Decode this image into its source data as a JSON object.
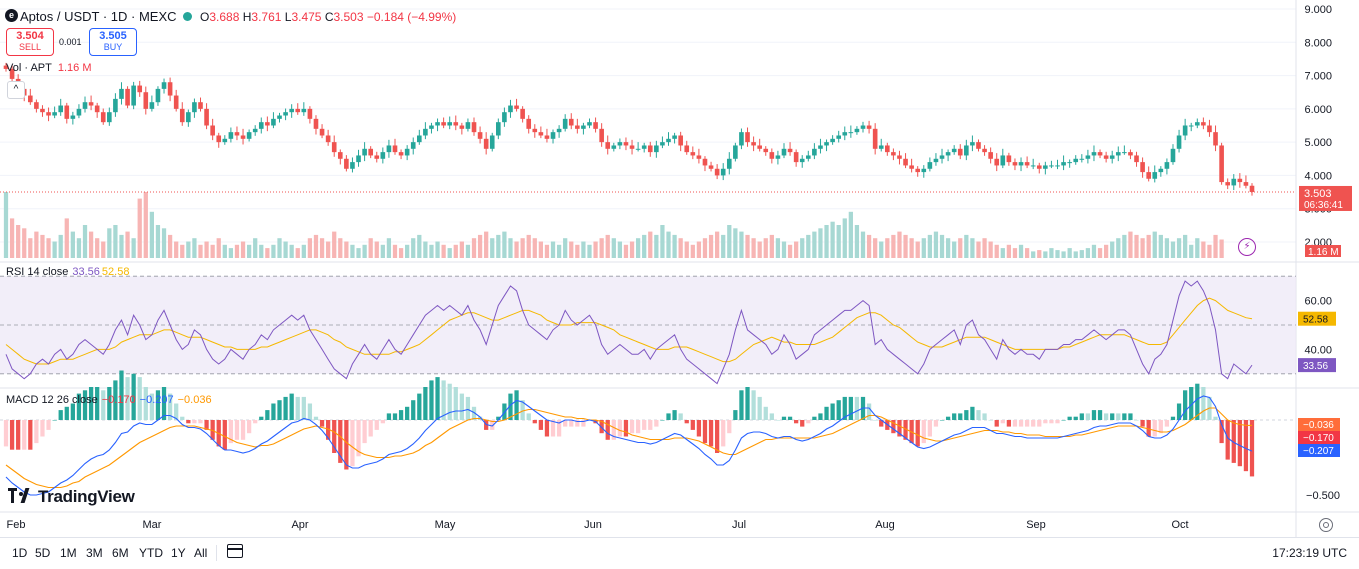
{
  "header": {
    "symbol": "Aptos / USDT · 1D · MEXC",
    "open_label": "O",
    "open": "3.688",
    "high_label": "H",
    "high": "3.761",
    "low_label": "L",
    "low": "3.475",
    "close_label": "C",
    "close": "3.503",
    "change": "−0.184 (−4.99%)",
    "sell_price": "3.504",
    "sell_label": "SELL",
    "buy_price": "3.505",
    "buy_label": "BUY",
    "spread": "0.001"
  },
  "colors": {
    "up": "#26a69a",
    "down": "#ef5350",
    "rsi": "#7e57c2",
    "rsi_ma": "#f5b800",
    "macd": "#2962ff",
    "signal": "#ff9800",
    "rsi_band": "#ede7f6"
  },
  "icons": [
    "aptos-logo-icon",
    "market-status-dot-icon",
    "collapse-chevron-icon",
    "calendar-range-icon",
    "settings-gear-icon",
    "lightning-icon",
    "tradingview-logo-icon"
  ],
  "volume": {
    "label": "Vol · APT",
    "value": "1.16 M",
    "last_label": "1.16 M"
  },
  "rsi": {
    "label": "RSI 14 close",
    "value": "33.56",
    "ma": "52.58",
    "levels": [
      70,
      50,
      30
    ]
  },
  "macd": {
    "label": "MACD 12 26 close",
    "hist": "−0.170",
    "macd": "−0.207",
    "signal": "−0.036"
  },
  "price_axis": {
    "ticks": [
      "9.000",
      "8.000",
      "7.000",
      "6.000",
      "5.000",
      "4.000",
      "3.000",
      "2.000"
    ],
    "last": "3.503",
    "countdown": "06:36:41"
  },
  "rsi_axis": {
    "ticks": [
      "60.00",
      "40.00"
    ],
    "tags": [
      "52.58",
      "33.56"
    ]
  },
  "macd_axis": {
    "ticks": [
      "−0.500"
    ],
    "tags": [
      "−0.036",
      "−0.170",
      "−0.207"
    ]
  },
  "time_axis": {
    "labels": [
      "Feb",
      "Mar",
      "Apr",
      "May",
      "Jun",
      "Jul",
      "Aug",
      "Sep",
      "Oct"
    ]
  },
  "brand": "TradingView",
  "ranges": [
    "1D",
    "5D",
    "1M",
    "3M",
    "6M",
    "YTD",
    "1Y",
    "All"
  ],
  "clock": "17:23:19 UTC",
  "chart_data": {
    "type": "candlestick",
    "interval": "1D",
    "price_range": [
      2.0,
      9.0
    ],
    "rsi_range": [
      25,
      75
    ],
    "macd_range": [
      -0.6,
      0.2
    ],
    "closes": [
      7.2,
      6.9,
      6.6,
      6.4,
      6.2,
      6.0,
      5.9,
      5.8,
      5.9,
      6.1,
      5.7,
      5.8,
      6.0,
      6.2,
      6.1,
      5.9,
      5.6,
      5.9,
      6.3,
      6.6,
      6.1,
      6.7,
      6.5,
      6.0,
      6.2,
      6.6,
      6.8,
      6.4,
      6.0,
      5.6,
      5.9,
      6.2,
      6.0,
      5.5,
      5.2,
      5.0,
      5.1,
      5.3,
      5.2,
      5.1,
      5.3,
      5.4,
      5.6,
      5.5,
      5.7,
      5.8,
      5.9,
      6.0,
      5.9,
      6.0,
      5.7,
      5.4,
      5.2,
      5.0,
      4.7,
      4.5,
      4.2,
      4.4,
      4.6,
      4.8,
      4.6,
      4.5,
      4.7,
      4.9,
      4.7,
      4.6,
      4.8,
      5.0,
      5.2,
      5.4,
      5.5,
      5.6,
      5.5,
      5.6,
      5.5,
      5.4,
      5.6,
      5.3,
      5.1,
      4.8,
      5.2,
      5.6,
      5.9,
      6.1,
      6.0,
      5.7,
      5.4,
      5.3,
      5.2,
      5.1,
      5.3,
      5.4,
      5.7,
      5.5,
      5.4,
      5.5,
      5.6,
      5.4,
      5.0,
      4.8,
      4.9,
      5.0,
      4.9,
      4.8,
      4.8,
      4.9,
      4.7,
      4.9,
      5.0,
      5.1,
      5.2,
      4.9,
      4.7,
      4.6,
      4.5,
      4.3,
      4.2,
      4.0,
      4.2,
      4.5,
      4.9,
      5.3,
      5.0,
      4.9,
      4.8,
      4.7,
      4.5,
      4.6,
      4.8,
      4.7,
      4.4,
      4.5,
      4.6,
      4.8,
      4.9,
      5.0,
      5.1,
      5.2,
      5.3,
      5.3,
      5.4,
      5.5,
      5.4,
      4.8,
      4.9,
      4.7,
      4.6,
      4.5,
      4.3,
      4.2,
      4.1,
      4.2,
      4.4,
      4.5,
      4.6,
      4.7,
      4.8,
      4.6,
      4.9,
      5.0,
      4.8,
      4.7,
      4.5,
      4.3,
      4.6,
      4.4,
      4.3,
      4.4,
      4.3,
      4.3,
      4.2,
      4.3,
      4.3,
      4.3,
      4.4,
      4.4,
      4.5,
      4.5,
      4.6,
      4.7,
      4.6,
      4.5,
      4.6,
      4.7,
      4.7,
      4.6,
      4.4,
      4.1,
      3.9,
      4.1,
      4.2,
      4.4,
      4.8,
      5.2,
      5.5,
      5.5,
      5.6,
      5.5,
      5.3,
      4.9,
      3.8,
      3.7,
      3.9,
      3.8,
      3.69,
      3.503
    ],
    "volumes": [
      1.0,
      0.6,
      0.5,
      0.45,
      0.3,
      0.4,
      0.35,
      0.3,
      0.25,
      0.35,
      0.6,
      0.4,
      0.3,
      0.5,
      0.4,
      0.3,
      0.25,
      0.45,
      0.5,
      0.35,
      0.4,
      0.3,
      0.9,
      1.0,
      0.7,
      0.5,
      0.45,
      0.35,
      0.25,
      0.2,
      0.25,
      0.3,
      0.2,
      0.25,
      0.2,
      0.3,
      0.2,
      0.15,
      0.2,
      0.25,
      0.2,
      0.3,
      0.2,
      0.15,
      0.2,
      0.3,
      0.25,
      0.2,
      0.15,
      0.2,
      0.3,
      0.35,
      0.3,
      0.25,
      0.4,
      0.3,
      0.25,
      0.2,
      0.15,
      0.2,
      0.3,
      0.25,
      0.2,
      0.3,
      0.2,
      0.15,
      0.2,
      0.3,
      0.35,
      0.25,
      0.2,
      0.25,
      0.2,
      0.15,
      0.2,
      0.25,
      0.2,
      0.3,
      0.35,
      0.4,
      0.3,
      0.35,
      0.4,
      0.3,
      0.25,
      0.3,
      0.35,
      0.3,
      0.25,
      0.2,
      0.25,
      0.2,
      0.3,
      0.25,
      0.2,
      0.25,
      0.2,
      0.25,
      0.3,
      0.35,
      0.3,
      0.25,
      0.2,
      0.25,
      0.3,
      0.35,
      0.4,
      0.35,
      0.5,
      0.4,
      0.35,
      0.3,
      0.25,
      0.2,
      0.25,
      0.3,
      0.35,
      0.4,
      0.35,
      0.5,
      0.45,
      0.4,
      0.35,
      0.3,
      0.25,
      0.3,
      0.35,
      0.3,
      0.25,
      0.2,
      0.25,
      0.3,
      0.35,
      0.4,
      0.45,
      0.5,
      0.55,
      0.5,
      0.6,
      0.7,
      0.5,
      0.4,
      0.35,
      0.3,
      0.25,
      0.3,
      0.35,
      0.4,
      0.35,
      0.3,
      0.25,
      0.3,
      0.35,
      0.4,
      0.35,
      0.3,
      0.25,
      0.3,
      0.35,
      0.3,
      0.25,
      0.3,
      0.25,
      0.2,
      0.15,
      0.2,
      0.15,
      0.2,
      0.15,
      0.1,
      0.12,
      0.1,
      0.15,
      0.12,
      0.1,
      0.15,
      0.1,
      0.12,
      0.15,
      0.2,
      0.15,
      0.2,
      0.25,
      0.3,
      0.35,
      0.4,
      0.35,
      0.3,
      0.35,
      0.4,
      0.35,
      0.3,
      0.25,
      0.3,
      0.35,
      0.2,
      0.3,
      0.25,
      0.2,
      0.35,
      0.28
    ],
    "rsi_values": [
      38,
      32,
      30,
      28,
      30,
      34,
      36,
      34,
      38,
      40,
      36,
      38,
      42,
      44,
      42,
      40,
      38,
      42,
      48,
      52,
      46,
      54,
      50,
      44,
      46,
      52,
      56,
      50,
      44,
      40,
      42,
      48,
      46,
      40,
      36,
      34,
      36,
      40,
      38,
      36,
      40,
      42,
      46,
      44,
      48,
      50,
      52,
      54,
      52,
      54,
      48,
      44,
      40,
      36,
      32,
      30,
      28,
      34,
      38,
      42,
      38,
      36,
      40,
      44,
      40,
      38,
      42,
      46,
      50,
      54,
      56,
      58,
      56,
      58,
      56,
      54,
      58,
      52,
      48,
      42,
      50,
      58,
      62,
      66,
      64,
      56,
      50,
      48,
      46,
      44,
      48,
      50,
      56,
      52,
      50,
      52,
      54,
      50,
      42,
      38,
      40,
      42,
      40,
      38,
      38,
      40,
      36,
      40,
      42,
      44,
      46,
      40,
      36,
      34,
      32,
      30,
      28,
      26,
      32,
      38,
      48,
      56,
      48,
      46,
      44,
      42,
      38,
      40,
      46,
      42,
      36,
      38,
      40,
      46,
      48,
      50,
      52,
      54,
      56,
      56,
      58,
      60,
      58,
      42,
      44,
      40,
      38,
      36,
      34,
      32,
      30,
      34,
      40,
      42,
      44,
      46,
      48,
      42,
      50,
      52,
      46,
      44,
      40,
      36,
      44,
      40,
      38,
      40,
      38,
      38,
      36,
      40,
      40,
      40,
      42,
      42,
      44,
      44,
      46,
      48,
      46,
      44,
      46,
      48,
      48,
      46,
      40,
      34,
      30,
      36,
      38,
      42,
      52,
      62,
      68,
      66,
      68,
      64,
      58,
      48,
      30,
      28,
      34,
      32,
      30,
      33.56
    ],
    "rsi_ma_values": [
      42,
      40,
      38,
      36,
      35,
      34,
      34,
      34,
      35,
      36,
      36,
      36,
      37,
      38,
      39,
      40,
      40,
      40,
      41,
      43,
      44,
      45,
      46,
      46,
      46,
      47,
      48,
      48,
      47,
      46,
      45,
      45,
      45,
      44,
      43,
      42,
      41,
      41,
      40,
      40,
      40,
      40,
      41,
      41,
      42,
      43,
      44,
      45,
      46,
      47,
      48,
      48,
      47,
      46,
      44,
      43,
      41,
      40,
      39,
      38,
      38,
      38,
      38,
      38,
      39,
      39,
      40,
      41,
      42,
      44,
      46,
      48,
      50,
      52,
      53,
      54,
      55,
      55,
      54,
      53,
      52,
      52,
      53,
      54,
      55,
      56,
      56,
      55,
      54,
      52,
      51,
      50,
      50,
      50,
      51,
      51,
      51,
      51,
      50,
      49,
      48,
      46,
      45,
      44,
      43,
      42,
      41,
      40,
      40,
      40,
      41,
      41,
      41,
      40,
      39,
      38,
      37,
      36,
      35,
      35,
      36,
      38,
      40,
      42,
      43,
      44,
      45,
      44,
      43,
      43,
      42,
      42,
      42,
      42,
      43,
      44,
      45,
      47,
      49,
      51,
      53,
      54,
      55,
      55,
      54,
      52,
      50,
      49,
      47,
      45,
      43,
      42,
      41,
      41,
      41,
      42,
      43,
      44,
      45,
      45,
      45,
      45,
      44,
      43,
      42,
      41,
      40,
      40,
      40,
      40,
      40,
      40,
      40,
      40,
      41,
      41,
      42,
      43,
      44,
      45,
      46,
      46,
      46,
      46,
      46,
      45,
      44,
      43,
      42,
      42,
      42,
      43,
      46,
      49,
      52,
      55,
      58,
      60,
      61,
      60,
      58,
      56,
      55,
      54,
      53,
      52.58
    ],
    "macd_values": [
      -0.38,
      -0.42,
      -0.45,
      -0.48,
      -0.5,
      -0.5,
      -0.49,
      -0.48,
      -0.45,
      -0.42,
      -0.4,
      -0.37,
      -0.33,
      -0.29,
      -0.26,
      -0.24,
      -0.23,
      -0.2,
      -0.15,
      -0.09,
      -0.08,
      -0.04,
      -0.02,
      -0.03,
      -0.03,
      0.0,
      0.03,
      0.03,
      0.01,
      -0.03,
      -0.05,
      -0.05,
      -0.06,
      -0.09,
      -0.13,
      -0.17,
      -0.2,
      -0.2,
      -0.21,
      -0.22,
      -0.21,
      -0.19,
      -0.16,
      -0.14,
      -0.11,
      -0.08,
      -0.05,
      -0.02,
      -0.01,
      0.01,
      0.0,
      -0.03,
      -0.07,
      -0.12,
      -0.18,
      -0.24,
      -0.3,
      -0.32,
      -0.32,
      -0.3,
      -0.29,
      -0.28,
      -0.26,
      -0.23,
      -0.22,
      -0.21,
      -0.19,
      -0.16,
      -0.12,
      -0.07,
      -0.03,
      0.01,
      0.03,
      0.05,
      0.06,
      0.06,
      0.07,
      0.05,
      0.02,
      -0.03,
      -0.04,
      0.0,
      0.05,
      0.1,
      0.13,
      0.12,
      0.09,
      0.06,
      0.03,
      0.0,
      -0.01,
      -0.02,
      0.0,
      0.0,
      -0.01,
      -0.01,
      0.0,
      -0.01,
      -0.05,
      -0.09,
      -0.11,
      -0.12,
      -0.13,
      -0.14,
      -0.15,
      -0.15,
      -0.16,
      -0.15,
      -0.13,
      -0.11,
      -0.09,
      -0.1,
      -0.13,
      -0.16,
      -0.19,
      -0.23,
      -0.26,
      -0.3,
      -0.3,
      -0.27,
      -0.2,
      -0.12,
      -0.09,
      -0.08,
      -0.08,
      -0.09,
      -0.11,
      -0.12,
      -0.11,
      -0.11,
      -0.13,
      -0.14,
      -0.13,
      -0.11,
      -0.09,
      -0.06,
      -0.04,
      -0.01,
      0.02,
      0.04,
      0.06,
      0.08,
      0.08,
      0.03,
      0.0,
      -0.03,
      -0.06,
      -0.09,
      -0.12,
      -0.15,
      -0.18,
      -0.19,
      -0.18,
      -0.16,
      -0.14,
      -0.12,
      -0.1,
      -0.09,
      -0.07,
      -0.05,
      -0.05,
      -0.05,
      -0.07,
      -0.09,
      -0.09,
      -0.1,
      -0.11,
      -0.11,
      -0.12,
      -0.12,
      -0.12,
      -0.12,
      -0.12,
      -0.12,
      -0.11,
      -0.1,
      -0.09,
      -0.08,
      -0.07,
      -0.05,
      -0.04,
      -0.04,
      -0.03,
      -0.02,
      -0.02,
      -0.02,
      -0.04,
      -0.07,
      -0.11,
      -0.12,
      -0.12,
      -0.1,
      -0.06,
      0.0,
      0.06,
      0.1,
      0.14,
      0.16,
      0.15,
      0.09,
      -0.03,
      -0.12,
      -0.15,
      -0.17,
      -0.19,
      -0.207
    ],
    "signal_values": [
      -0.3,
      -0.33,
      -0.36,
      -0.39,
      -0.41,
      -0.43,
      -0.44,
      -0.45,
      -0.45,
      -0.45,
      -0.44,
      -0.42,
      -0.41,
      -0.38,
      -0.36,
      -0.34,
      -0.32,
      -0.3,
      -0.27,
      -0.24,
      -0.21,
      -0.18,
      -0.15,
      -0.13,
      -0.11,
      -0.09,
      -0.07,
      -0.05,
      -0.04,
      -0.04,
      -0.04,
      -0.04,
      -0.05,
      -0.06,
      -0.07,
      -0.09,
      -0.11,
      -0.13,
      -0.15,
      -0.16,
      -0.17,
      -0.18,
      -0.17,
      -0.17,
      -0.16,
      -0.14,
      -0.12,
      -0.1,
      -0.08,
      -0.06,
      -0.05,
      -0.04,
      -0.05,
      -0.06,
      -0.08,
      -0.11,
      -0.15,
      -0.18,
      -0.21,
      -0.23,
      -0.24,
      -0.25,
      -0.25,
      -0.25,
      -0.24,
      -0.24,
      -0.23,
      -0.22,
      -0.2,
      -0.17,
      -0.15,
      -0.12,
      -0.09,
      -0.06,
      -0.04,
      -0.02,
      0.0,
      0.01,
      0.01,
      0.0,
      -0.01,
      -0.01,
      0.0,
      0.02,
      0.04,
      0.06,
      0.07,
      0.07,
      0.06,
      0.05,
      0.04,
      0.03,
      0.02,
      0.02,
      0.01,
      0.01,
      0.0,
      0.0,
      -0.01,
      -0.03,
      -0.05,
      -0.07,
      -0.08,
      -0.1,
      -0.11,
      -0.12,
      -0.13,
      -0.13,
      -0.13,
      -0.13,
      -0.12,
      -0.12,
      -0.12,
      -0.13,
      -0.14,
      -0.16,
      -0.18,
      -0.2,
      -0.22,
      -0.23,
      -0.23,
      -0.21,
      -0.19,
      -0.17,
      -0.15,
      -0.13,
      -0.13,
      -0.12,
      -0.12,
      -0.12,
      -0.12,
      -0.12,
      -0.12,
      -0.12,
      -0.11,
      -0.1,
      -0.09,
      -0.07,
      -0.05,
      -0.03,
      -0.01,
      0.01,
      0.03,
      0.03,
      0.02,
      0.0,
      -0.02,
      -0.04,
      -0.06,
      -0.08,
      -0.1,
      -0.12,
      -0.13,
      -0.14,
      -0.14,
      -0.13,
      -0.12,
      -0.11,
      -0.1,
      -0.09,
      -0.08,
      -0.07,
      -0.07,
      -0.07,
      -0.08,
      -0.08,
      -0.09,
      -0.09,
      -0.1,
      -0.1,
      -0.1,
      -0.11,
      -0.11,
      -0.11,
      -0.11,
      -0.11,
      -0.1,
      -0.1,
      -0.09,
      -0.08,
      -0.07,
      -0.06,
      -0.05,
      -0.04,
      -0.04,
      -0.04,
      -0.04,
      -0.05,
      -0.06,
      -0.07,
      -0.08,
      -0.08,
      -0.07,
      -0.05,
      -0.03,
      0.0,
      0.03,
      0.06,
      0.08,
      0.08,
      0.04,
      0.0,
      -0.02,
      -0.03,
      -0.035,
      -0.036
    ]
  }
}
